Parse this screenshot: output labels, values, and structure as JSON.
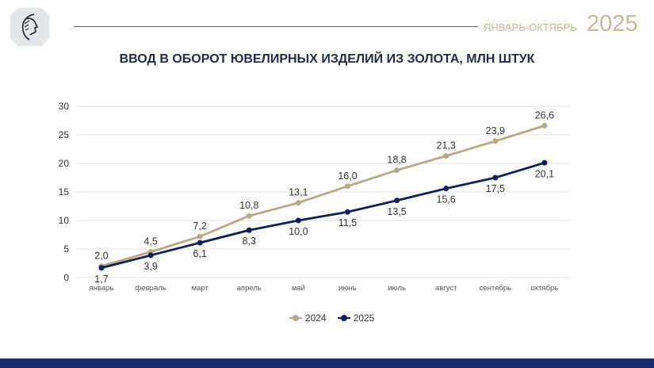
{
  "header": {
    "period": "ЯНВАРЬ-ОКТЯБРЬ",
    "year": "2025",
    "logo_icon": "profile-head-logo"
  },
  "chart_data": {
    "type": "line",
    "title": "ВВОД В ОБОРОТ ЮВЕЛИРНЫХ ИЗДЕЛИЙ ИЗ ЗОЛОТА, МЛН ШТУК",
    "categories": [
      "январь",
      "февраль",
      "март",
      "апрель",
      "май",
      "июнь",
      "июль",
      "август",
      "сентябрь",
      "октябрь"
    ],
    "ylim": [
      0,
      30
    ],
    "yticks": [
      0,
      5,
      10,
      15,
      20,
      25,
      30
    ],
    "grid": true,
    "legend": "bottom",
    "series": [
      {
        "name": "2024",
        "color": "#b9a888",
        "values": [
          2.0,
          4.5,
          7.2,
          10.8,
          13.1,
          16.0,
          18.8,
          21.3,
          23.9,
          26.6
        ],
        "labels": [
          "2,0",
          "4,5",
          "7,2",
          "10,8",
          "13,1",
          "16,0",
          "18,8",
          "21,3",
          "23,9",
          "26,6"
        ]
      },
      {
        "name": "2025",
        "color": "#0f1f5c",
        "values": [
          1.7,
          3.9,
          6.1,
          8.3,
          10.0,
          11.5,
          13.5,
          15.6,
          17.5,
          20.1
        ],
        "labels": [
          "1,7",
          "3,9",
          "6,1",
          "8,3",
          "10,0",
          "11,5",
          "13,5",
          "15,6",
          "17,5",
          "20,1"
        ]
      }
    ]
  }
}
